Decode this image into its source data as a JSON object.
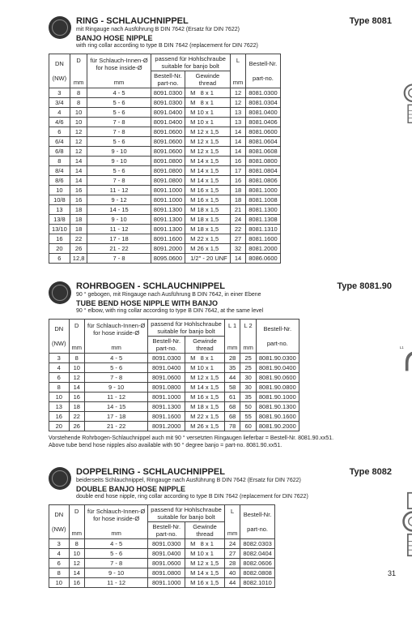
{
  "page_number": "31",
  "sections": [
    {
      "type_label": "Type 8081",
      "title_de": "RING - SCHLAUCHNIPPEL",
      "sub_de": "mit Ringauge nach Ausführung B DIN 7642 (Ersatz für DIN 7622)",
      "title_en": "BANJO HOSE NIPPLE",
      "sub_en": "with ring collar according to type B DIN 7642 (replacement for DIN 7622)",
      "columns": [
        {
          "h1": "DN",
          "h2": "(NW)",
          "h3": ""
        },
        {
          "h1": "D",
          "h2": "",
          "h3": "mm"
        },
        {
          "h1": "für Schlauch-Innen-Ø",
          "h2": "for hose inside-Ø",
          "h3": "mm"
        },
        {
          "h1": "passend für Hohlschraube",
          "h2": "suitable for banjo bolt",
          "sub1": "Bestell-Nr.",
          "sub1b": "part-no.",
          "sub2": "Gewinde",
          "sub2b": "thread"
        },
        {
          "h1": "L",
          "h2": "",
          "h3": "mm"
        },
        {
          "h1": "Bestell-Nr.",
          "h2": "",
          "h3": "part-no."
        }
      ],
      "rows": [
        [
          "3",
          "8",
          "4  -  5",
          "8091.0300",
          "M   8 x 1",
          "12",
          "8081.0300"
        ],
        [
          "3/4",
          "8",
          "5  -  6",
          "8091.0300",
          "M   8 x 1",
          "12",
          "8081.0304"
        ],
        [
          "4",
          "10",
          "5  -  6",
          "8091.0400",
          "M 10 x 1",
          "13",
          "8081.0400"
        ],
        [
          "4/6",
          "10",
          "7  -  8",
          "8091.0400",
          "M 10 x 1",
          "13",
          "8081.0406"
        ],
        [
          "6",
          "12",
          "7  -  8",
          "8091.0600",
          "M 12 x 1,5",
          "14",
          "8081.0600"
        ],
        [
          "6/4",
          "12",
          "5  -  6",
          "8091.0600",
          "M 12 x 1,5",
          "14",
          "8081.0604"
        ],
        [
          "6/8",
          "12",
          "9  - 10",
          "8091.0600",
          "M 12 x 1,5",
          "14",
          "8081.0608"
        ],
        [
          "8",
          "14",
          "9  - 10",
          "8091.0800",
          "M 14 x 1,5",
          "16",
          "8081.0800"
        ],
        [
          "8/4",
          "14",
          "5  -  6",
          "8091.0800",
          "M 14 x 1,5",
          "17",
          "8081.0804"
        ],
        [
          "8/6",
          "14",
          "7  -  8",
          "8091.0800",
          "M 14 x 1,5",
          "16",
          "8081.0806"
        ],
        [
          "10",
          "16",
          "11 - 12",
          "8091.1000",
          "M 16 x 1,5",
          "18",
          "8081.1000"
        ],
        [
          "10/8",
          "16",
          "9  - 12",
          "8091.1000",
          "M 16 x 1,5",
          "18",
          "8081.1008"
        ],
        [
          "13",
          "18",
          "14 - 15",
          "8091.1300",
          "M 18 x 1,5",
          "21",
          "8081.1300"
        ],
        [
          "13/8",
          "18",
          "9  - 10",
          "8091.1300",
          "M 18 x 1,5",
          "24",
          "8081.1308"
        ],
        [
          "13/10",
          "18",
          "11 - 12",
          "8091.1300",
          "M 18 x 1,5",
          "22",
          "8081.1310"
        ],
        [
          "16",
          "22",
          "17 - 18",
          "8091.1600",
          "M 22 x 1,5",
          "27",
          "8081.1600"
        ],
        [
          "20",
          "26",
          "21 - 22",
          "8091.2000",
          "M 26 x 1,5",
          "32",
          "8081.2000"
        ]
      ],
      "extra_row": [
        "6",
        "12,8",
        "7  -  8",
        "8095.0600",
        "1/2\" - 20 UNF",
        "14",
        "8086.0600"
      ]
    },
    {
      "type_label": "Type 8081.90",
      "title_de": "ROHRBOGEN - SCHLAUCHNIPPEL",
      "sub_de": "90 ° gebogen, mit Ringauge nach Ausführung B DIN 7642, in einer Ebene",
      "title_en": "TUBE BEND HOSE NIPPLE WITH BANJO",
      "sub_en": "90 ° elbow, with ring collar according to type B DIN 7642, at the same level",
      "columns2": [
        "DN",
        "(NW)",
        "D",
        "mm",
        "für Schlauch-Innen-Ø",
        "for hose inside-Ø",
        "mm",
        "passend für Hohlschraube",
        "suitable for banjo bolt",
        "Bestell-Nr.",
        "part-no.",
        "Gewinde",
        "thread",
        "L 1",
        "mm",
        "L 2",
        "mm",
        "Bestell-Nr.",
        "part-no."
      ],
      "rows": [
        [
          "3",
          "8",
          "4  -  5",
          "8091.0300",
          "M   8 x 1",
          "28",
          "25",
          "8081.90.0300"
        ],
        [
          "4",
          "10",
          "5  -  6",
          "8091.0400",
          "M 10 x 1",
          "35",
          "25",
          "8081.90.0400"
        ],
        [
          "6",
          "12",
          "7  -  8",
          "8091.0600",
          "M 12 x 1,5",
          "44",
          "30",
          "8081.90.0600"
        ],
        [
          "8",
          "14",
          "9  - 10",
          "8091.0800",
          "M 14 x 1,5",
          "58",
          "30",
          "8081.90.0800"
        ],
        [
          "10",
          "16",
          "11 - 12",
          "8091.1000",
          "M 16 x 1,5",
          "61",
          "35",
          "8081.90.1000"
        ],
        [
          "13",
          "18",
          "14 - 15",
          "8091.1300",
          "M 18 x 1,5",
          "68",
          "50",
          "8081.90.1300"
        ],
        [
          "16",
          "22",
          "17 - 18",
          "8091.1600",
          "M 22 x 1,5",
          "68",
          "55",
          "8081.90.1600"
        ],
        [
          "20",
          "26",
          "21 - 22",
          "8091.2000",
          "M 26 x 1,5",
          "78",
          "60",
          "8081.90.2000"
        ]
      ],
      "note_de": "Vorstehende Rohrbogen-Schlauchnippel auch mit 90 ° versetzten Ringaugen lieferbar = Bestell-Nr. 8081.90.xx51.",
      "note_en": "Above tube bend hose nipples also available with 90 ° degree banjo = part-no. 8081.90.xx51."
    },
    {
      "type_label": "Type 8082",
      "title_de": "DOPPELRING - SCHLAUCHNIPPEL",
      "sub_de": "beiderseits Schlauchnippel, Ringauge nach Ausführung B DIN 7642 (Ersatz für DIN 7622)",
      "title_en": "DOUBLE BANJO HOSE NIPPLE",
      "sub_en": "double end hose nipple, ring collar according to type B DIN 7642 (replacement for DIN 7622)",
      "rows": [
        [
          "3",
          "8",
          "4  -  5",
          "8091.0300",
          "M   8 x 1",
          "24",
          "8082.0303"
        ],
        [
          "4",
          "10",
          "5  -  6",
          "8091.0400",
          "M 10 x 1",
          "27",
          "8082.0404"
        ],
        [
          "6",
          "12",
          "7  -  8",
          "8091.0600",
          "M 12 x 1,5",
          "28",
          "8082.0606"
        ],
        [
          "8",
          "14",
          "9  - 10",
          "8091.0800",
          "M 14 x 1,5",
          "40",
          "8082.0808"
        ],
        [
          "10",
          "16",
          "11 - 12",
          "8091.1000",
          "M 16 x 1,5",
          "44",
          "8082.1010"
        ]
      ]
    }
  ]
}
